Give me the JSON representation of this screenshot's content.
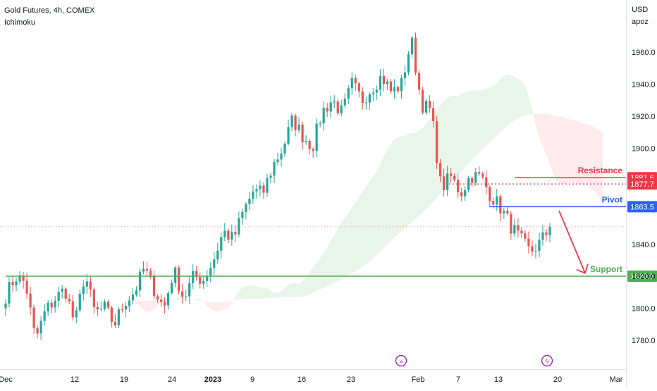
{
  "header": {
    "title": "Gold Futures, 4h, COMEX",
    "indicator": "Ichimoku"
  },
  "price_axis": {
    "currency": "USD",
    "mode": "apoz"
  },
  "colors": {
    "bull": "#26a69a",
    "bear": "#ef5350",
    "resistance": "#f23645",
    "pivot": "#2962ff",
    "support": "#4caf50",
    "arrow": "#f23645",
    "cloud_bull": "#e8f5e9",
    "cloud_bear": "#ffebee"
  },
  "chart_data": {
    "type": "candlestick",
    "ylim": [
      1762,
      1975
    ],
    "y_ticks": [
      1780,
      1800,
      1820,
      1840,
      1860,
      1880,
      1900,
      1920,
      1940,
      1960
    ],
    "y_tick_labels": [
      "1780.0",
      "1800.0",
      "1820.0",
      "1840.0",
      "1860.0",
      "1880.0",
      "1900.0",
      "1920.0",
      "1940.0",
      "1960.0"
    ],
    "x_ticks": [
      {
        "label": "Dec",
        "bold": false
      },
      {
        "label": "12",
        "bold": false
      },
      {
        "label": "19",
        "bold": false
      },
      {
        "label": "24",
        "bold": false
      },
      {
        "label": "2023",
        "bold": true
      },
      {
        "label": "9",
        "bold": false
      },
      {
        "label": "16",
        "bold": false
      },
      {
        "label": "23",
        "bold": false
      },
      {
        "label": "Feb",
        "bold": false
      },
      {
        "label": "7",
        "bold": false
      },
      {
        "label": "13",
        "bold": false
      },
      {
        "label": "20",
        "bold": false
      },
      {
        "label": "Mar",
        "bold": false
      }
    ],
    "price_path": [
      1808,
      1820,
      1816,
      1780,
      1798,
      1806,
      1812,
      1790,
      1822,
      1797,
      1800,
      1790,
      1804,
      1810,
      1825,
      1812,
      1800,
      1824,
      1806,
      1820,
      1818,
      1830,
      1848,
      1843,
      1860,
      1873,
      1872,
      1889,
      1900,
      1918,
      1908,
      1901,
      1923,
      1930,
      1922,
      1940,
      1930,
      1938,
      1945,
      1935,
      1940,
      1968,
      1928,
      1923,
      1875,
      1882,
      1872,
      1883,
      1882,
      1871,
      1863,
      1852,
      1843,
      1835,
      1841,
      1850
    ],
    "lines": [
      {
        "name": "Resistance",
        "value": 1881.6,
        "label": "1881.6",
        "style": "solid"
      },
      {
        "name": "",
        "value": 1877.7,
        "label": "1877.7",
        "style": "dotted"
      },
      {
        "name": "Pivot",
        "value": 1863.5,
        "label": "1863.5",
        "style": "solid"
      },
      {
        "name": "Support",
        "value": 1820.1,
        "label": "1820.1",
        "style": "solid"
      }
    ],
    "current_price": 1851,
    "annotations": [
      "Resistance",
      "Pivot",
      "Support"
    ],
    "arrow": {
      "from": 1861,
      "to": 1822
    },
    "grid": false
  }
}
